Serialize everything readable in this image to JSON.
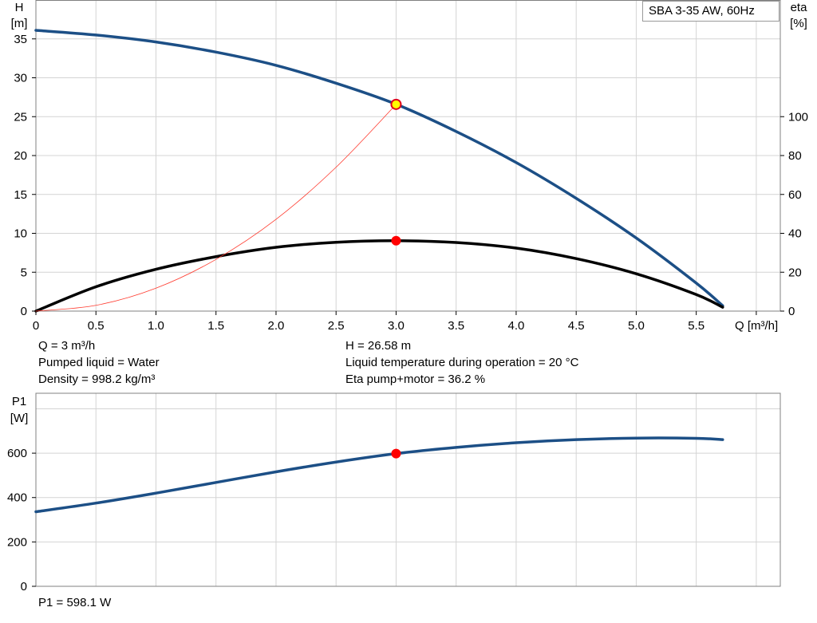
{
  "chart_data": [
    {
      "type": "line",
      "title": "SBA 3-35 AW, 60Hz",
      "xlabel": "Q [m³/h]",
      "ylabel_left": "H",
      "ylabel_left_unit": "[m]",
      "ylabel_right": "eta",
      "ylabel_right_unit": "[%]",
      "xlim": [
        0,
        6.2
      ],
      "ylim_left": [
        0,
        40
      ],
      "ylim_right": [
        0,
        160
      ],
      "xticks": [
        "0",
        "0.5",
        "1.0",
        "1.5",
        "2.0",
        "2.5",
        "3.0",
        "3.5",
        "4.0",
        "4.5",
        "5.0",
        "5.5"
      ],
      "yticks_left": [
        "0",
        "5",
        "10",
        "15",
        "20",
        "25",
        "30",
        "35"
      ],
      "yticks_right": [
        "0",
        "20",
        "40",
        "60",
        "80",
        "100"
      ],
      "grid": true,
      "series": [
        {
          "name": "H",
          "axis": "left",
          "color": "#1c4f86",
          "x": [
            0,
            0.5,
            1.0,
            1.5,
            2.0,
            2.5,
            3.0,
            3.5,
            4.0,
            4.5,
            5.0,
            5.5,
            5.72
          ],
          "y": [
            36.1,
            35.5,
            34.6,
            33.3,
            31.6,
            29.3,
            26.6,
            23.1,
            19.1,
            14.5,
            9.4,
            3.6,
            0.7
          ]
        },
        {
          "name": "eta",
          "axis": "right",
          "color": "#000000",
          "x": [
            0,
            0.5,
            1.0,
            1.5,
            2.0,
            2.5,
            3.0,
            3.5,
            4.0,
            4.5,
            5.0,
            5.5,
            5.72
          ],
          "y": [
            0,
            12.5,
            21.5,
            28.0,
            32.8,
            35.4,
            36.2,
            35.3,
            32.4,
            27.0,
            19.2,
            8.5,
            2.0
          ]
        },
        {
          "name": "system curve",
          "axis": "left",
          "color": "#ff3b2f",
          "x": [
            0,
            0.5,
            1.0,
            1.5,
            2.0,
            2.5,
            3.0
          ],
          "y": [
            0,
            0.74,
            2.95,
            6.65,
            11.8,
            18.5,
            26.58
          ]
        }
      ],
      "operating_points": [
        {
          "x": 3.0,
          "y": 26.58,
          "axis": "left",
          "fill": "#ffff00",
          "stroke": "#e0001b"
        },
        {
          "x": 3.0,
          "y": 36.2,
          "axis": "right",
          "fill": "#ff0000",
          "stroke": "#ff0000"
        }
      ]
    },
    {
      "type": "line",
      "ylabel": "P1",
      "ylabel_unit": "[W]",
      "xlim": [
        0,
        6.2
      ],
      "ylim": [
        0,
        870
      ],
      "yticks": [
        "0",
        "200",
        "400",
        "600"
      ],
      "grid": true,
      "series": [
        {
          "name": "P1",
          "color": "#1c4f86",
          "x": [
            0,
            0.5,
            1.0,
            1.5,
            2.0,
            2.5,
            3.0,
            3.5,
            4.0,
            4.5,
            5.0,
            5.5,
            5.72
          ],
          "y": [
            336,
            375,
            420,
            468,
            516,
            560,
            598,
            626,
            647,
            661,
            668,
            667,
            661
          ]
        }
      ],
      "operating_points": [
        {
          "x": 3.0,
          "y": 598.1,
          "fill": "#ff0000",
          "stroke": "#ff0000"
        }
      ]
    }
  ],
  "info": {
    "q": "Q = 3 m³/h",
    "liquid": "Pumped liquid = Water",
    "density": "Density = 998.2 kg/m³",
    "h": "H = 26.58 m",
    "temperature": "Liquid temperature during operation = 20 °C",
    "eta": "Eta pump+motor = 36.2 %",
    "p1": "P1 = 598.1 W"
  }
}
